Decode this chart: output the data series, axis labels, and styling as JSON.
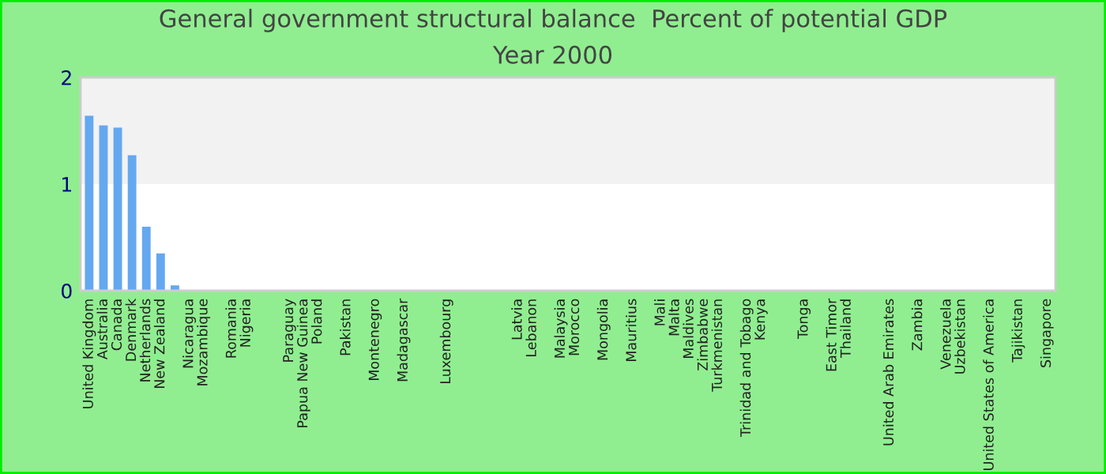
{
  "chart_data": {
    "type": "bar",
    "title": "General government structural balance  Percent of potential GDP",
    "subtitle": "Year 2000",
    "categories": [
      "United Kingdom",
      "Australia",
      "Canada",
      "Denmark",
      "Netherlands",
      "New Zealand",
      null,
      "Nicaragua",
      "Mozambique",
      null,
      "Romania",
      "Nigeria",
      null,
      null,
      "Paraguay",
      "Papua New Guinea",
      "Poland",
      null,
      "Pakistan",
      null,
      "Montenegro",
      null,
      "Madagascar",
      null,
      null,
      "Luxembourg",
      null,
      null,
      null,
      null,
      "Latvia",
      "Lebanon",
      null,
      "Malaysia",
      "Morocco",
      null,
      "Mongolia",
      null,
      "Mauritius",
      null,
      "Mali",
      "Malta",
      "Maldives",
      "Zimbabwe",
      "Turkmenistan",
      null,
      "Trinidad and Tobago",
      "Kenya",
      null,
      null,
      "Tonga",
      null,
      "East Timor",
      "Thailand",
      null,
      null,
      "United Arab Emirates",
      null,
      "Zambia",
      null,
      "Venezuela",
      "Uzbekistan",
      null,
      "United States of America",
      null,
      "Tajikistan",
      null,
      "Singapore"
    ],
    "values": [
      1.64,
      1.55,
      1.53,
      1.27,
      0.6,
      0.35,
      0.05,
      null,
      null,
      null,
      null,
      null,
      null,
      null,
      null,
      null,
      null,
      null,
      null,
      null,
      null,
      null,
      null,
      null,
      null,
      null,
      null,
      null,
      null,
      null,
      null,
      null,
      null,
      null,
      null,
      null,
      null,
      null,
      null,
      null,
      null,
      null,
      null,
      null,
      null,
      null,
      null,
      null,
      null,
      null,
      null,
      null,
      null,
      null,
      null,
      null,
      null,
      null,
      null,
      null,
      null,
      null,
      null,
      null,
      null,
      null,
      null,
      null
    ],
    "color": "#64a8f0",
    "ylim": [
      0,
      2
    ],
    "yticks": [
      0,
      1,
      2
    ],
    "bands": [
      {
        "axis": "y",
        "from": 1,
        "to": 2,
        "color": "#f2f2f2"
      }
    ],
    "grid": false,
    "legend": false
  }
}
